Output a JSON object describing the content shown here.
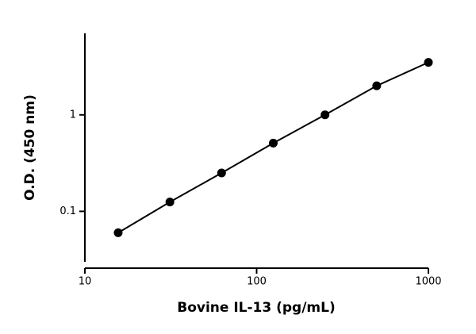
{
  "chart_data": {
    "type": "scatter",
    "x_label": "Bovine IL-13 (pg/mL)",
    "y_label": "O.D. (450 nm)",
    "x": [
      15.625,
      31.25,
      62.5,
      125,
      250,
      500,
      1000
    ],
    "series": [
      {
        "values": [
          0.06,
          0.125,
          0.25,
          0.51,
          1.0,
          2.0,
          3.5
        ],
        "color": "#000000"
      }
    ],
    "xlim": [
      10,
      1000
    ],
    "xticks": [
      10,
      100,
      1000
    ],
    "ylim": [
      0.03,
      7
    ],
    "yticks": [
      0.1,
      1
    ],
    "x_log": true,
    "y_log": true,
    "grid": false,
    "line": true
  }
}
